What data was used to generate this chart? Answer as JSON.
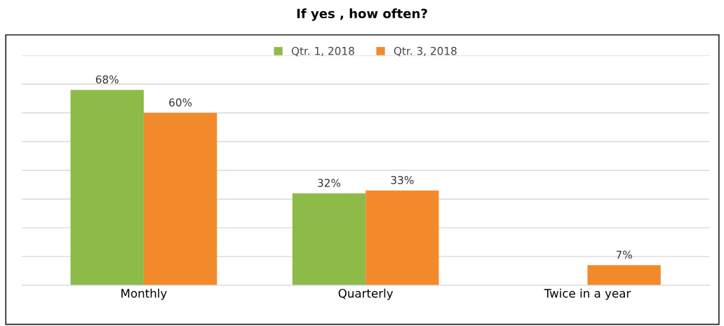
{
  "chart_data": {
    "type": "bar",
    "title": "If yes , how often?",
    "categories": [
      "Monthly",
      "Quarterly",
      "Twice in a year"
    ],
    "series": [
      {
        "name": "Qtr. 1, 2018",
        "color": "#8dbb48",
        "values": [
          68,
          32,
          null
        ],
        "value_labels": [
          "68%",
          "32%",
          null
        ]
      },
      {
        "name": "Qtr. 3, 2018",
        "color": "#f28a2c",
        "values": [
          60,
          33,
          7
        ],
        "value_labels": [
          "60%",
          "33%",
          "7%"
        ]
      }
    ],
    "ylim": [
      0,
      80
    ],
    "yticks": [
      {
        "value": 0,
        "label": null
      },
      {
        "value": 10,
        "label": null
      },
      {
        "value": 20,
        "label": null
      },
      {
        "value": 30,
        "label": null
      },
      {
        "value": 40,
        "label": null
      },
      {
        "value": 50,
        "label": null
      },
      {
        "value": 60,
        "label": null
      },
      {
        "value": 70,
        "label": null
      },
      {
        "value": 80,
        "label": null
      }
    ],
    "grid": "y",
    "legend": "top",
    "tick_labels": "x"
  }
}
